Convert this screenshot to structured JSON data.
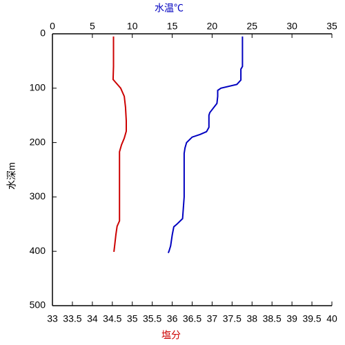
{
  "chart_data": {
    "type": "line",
    "x_label": "塩分",
    "x2_label": "水温℃",
    "y_label": "水深m",
    "xlim": [
      33,
      40
    ],
    "xticks": [
      33,
      33.5,
      34,
      34.5,
      35,
      35.5,
      36,
      36.5,
      37,
      37.5,
      38,
      38.5,
      39,
      39.5,
      40
    ],
    "x2lim": [
      0,
      35
    ],
    "x2ticks": [
      0,
      5,
      10,
      15,
      20,
      25,
      30,
      35
    ],
    "ylim": [
      0,
      500
    ],
    "yticks": [
      0,
      100,
      200,
      300,
      400,
      500
    ],
    "y_inverted": true,
    "series": [
      {
        "color": "#0000c0",
        "axis": "x2",
        "x": [
          23.8,
          23.8,
          23.6,
          23.6,
          23.1,
          21.1,
          20.7,
          20.7,
          20.6,
          19.7,
          19.6,
          19.6,
          19.3,
          18.5,
          17.5,
          16.8,
          16.6,
          16.5,
          16.5,
          16.3,
          15.6,
          15.2,
          15.0,
          14.8,
          14.6,
          14.5
        ],
        "y": [
          5,
          60,
          65,
          85,
          93,
          100,
          104,
          115,
          128,
          145,
          150,
          172,
          180,
          185,
          190,
          200,
          210,
          220,
          300,
          340,
          350,
          355,
          370,
          390,
          400,
          403
        ]
      },
      {
        "color": "#cc0000",
        "axis": "x",
        "x": [
          34.53,
          34.53,
          34.52,
          34.59,
          34.71,
          34.8,
          34.83,
          34.85,
          34.85,
          34.8,
          34.73,
          34.68,
          34.68,
          34.62,
          34.59,
          34.56,
          34.54
        ],
        "y": [
          5,
          60,
          84,
          90,
          100,
          115,
          135,
          160,
          179,
          192,
          204,
          217,
          344,
          354,
          369,
          388,
          401
        ]
      }
    ]
  }
}
